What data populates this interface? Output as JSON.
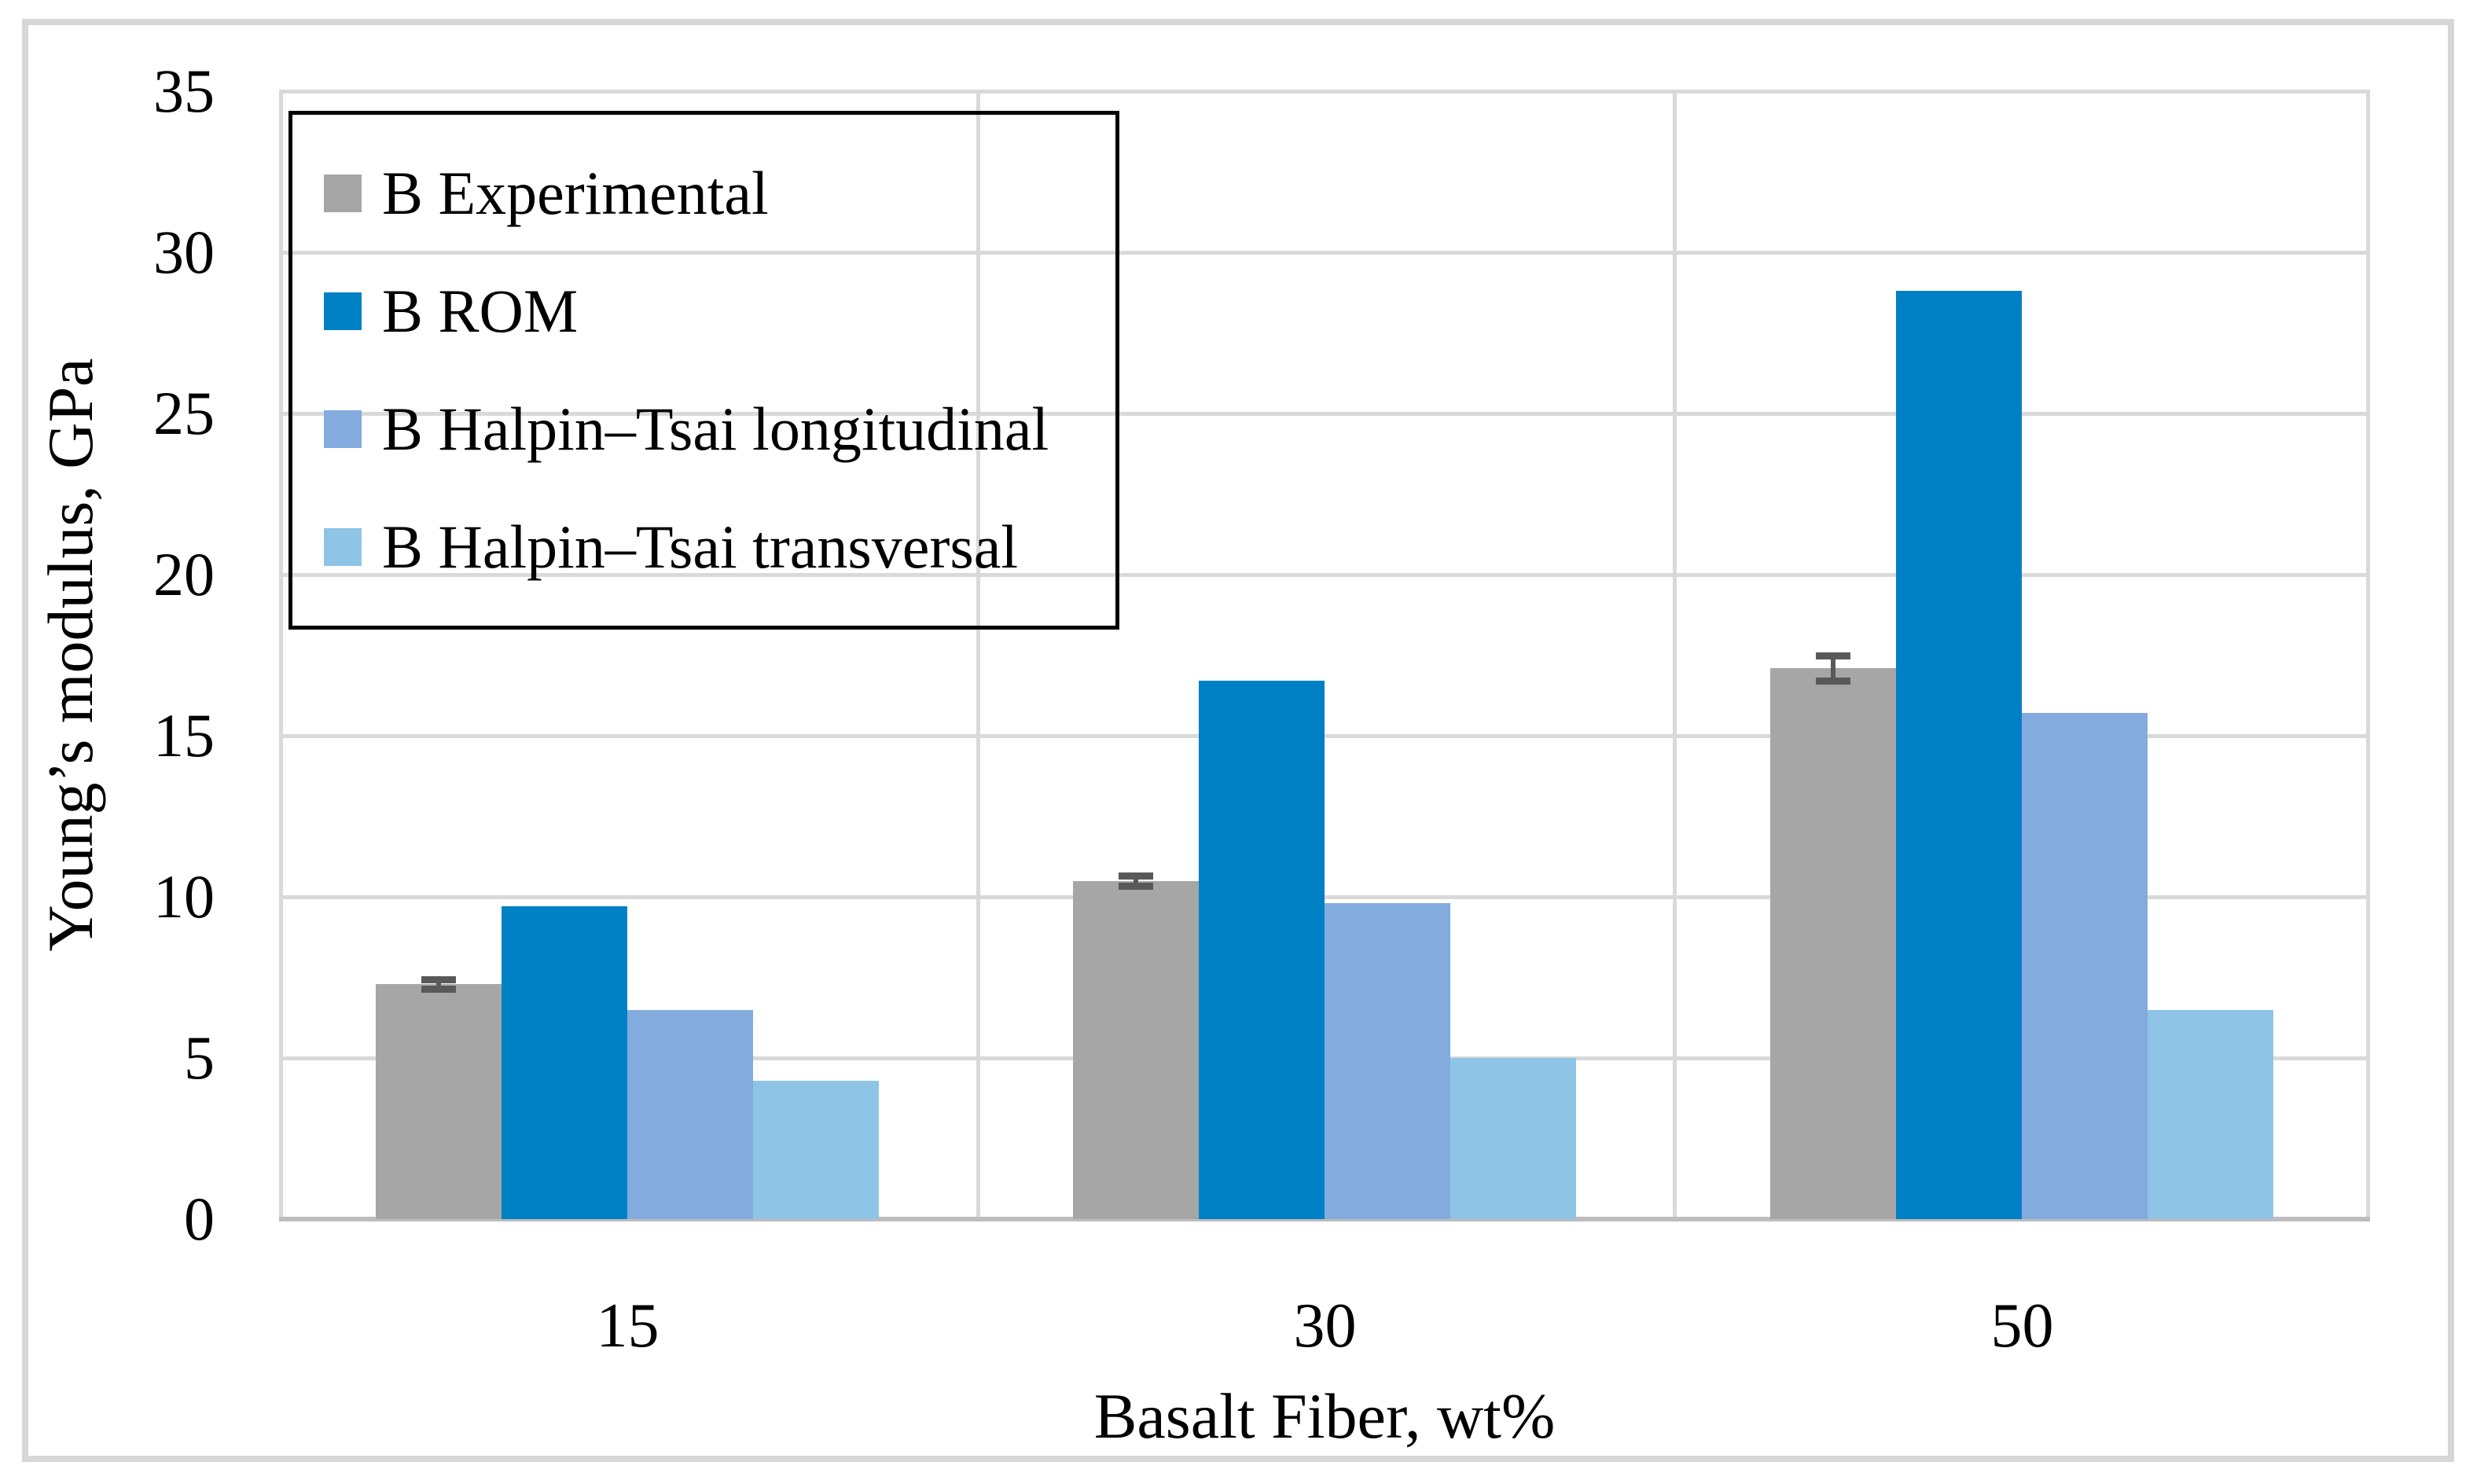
{
  "chart_data": {
    "type": "bar",
    "title": "",
    "xlabel": "Basalt Fiber, wt%",
    "ylabel": "Young’s modulus, GPa",
    "categories": [
      "15",
      "30",
      "50"
    ],
    "series": [
      {
        "name": "B Experimental",
        "color": "#a6a6a6",
        "values": [
          7.3,
          10.5,
          17.1
        ],
        "errors": [
          0.15,
          0.15,
          0.4
        ]
      },
      {
        "name": "B ROM",
        "color": "#0080c5",
        "values": [
          9.7,
          16.7,
          28.8
        ]
      },
      {
        "name": "B Halpin–Tsai longitudinal",
        "color": "#83abde",
        "values": [
          6.5,
          9.8,
          15.7
        ]
      },
      {
        "name": "B Halpin–Tsai transversal",
        "color": "#8ec4e6",
        "values": [
          4.3,
          5.0,
          6.5
        ]
      }
    ],
    "ylim": [
      0,
      35
    ],
    "ytick_step": 5,
    "yticks": [
      35,
      30,
      25,
      20,
      15,
      10,
      5,
      0
    ],
    "grid": true,
    "legend_position": "top-left",
    "error_bar_color": "#595959",
    "gridline_color": "#d9d9d9",
    "axis_line_color": "#bdbdbd"
  }
}
